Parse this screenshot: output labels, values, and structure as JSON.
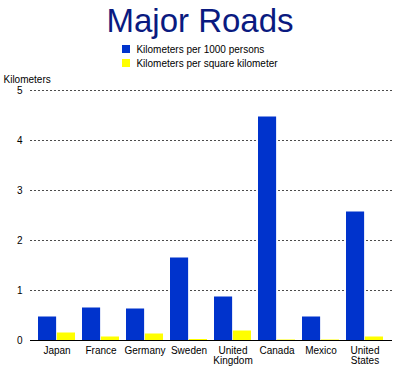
{
  "chart_data": {
    "type": "bar",
    "title": "Major Roads",
    "y_label": "Kilometers",
    "categories": [
      "Japan",
      "France",
      "Germany",
      "Sweden",
      "United Kingdom",
      "Canada",
      "Mexico",
      "United States"
    ],
    "series": [
      {
        "name": "Kilometers per 1000 persons",
        "color": "#0033cc",
        "values": [
          0.47,
          0.65,
          0.63,
          1.65,
          0.87,
          4.47,
          0.47,
          2.57
        ]
      },
      {
        "name": "Kilometers per square kilometer",
        "color": "#ffff00",
        "values": [
          0.15,
          0.07,
          0.13,
          0.02,
          0.19,
          0.01,
          0.01,
          0.07
        ]
      }
    ],
    "ylim": [
      0,
      5
    ],
    "yticks": [
      0,
      1,
      2,
      3,
      4,
      5
    ],
    "grid": true,
    "legend": "top"
  }
}
